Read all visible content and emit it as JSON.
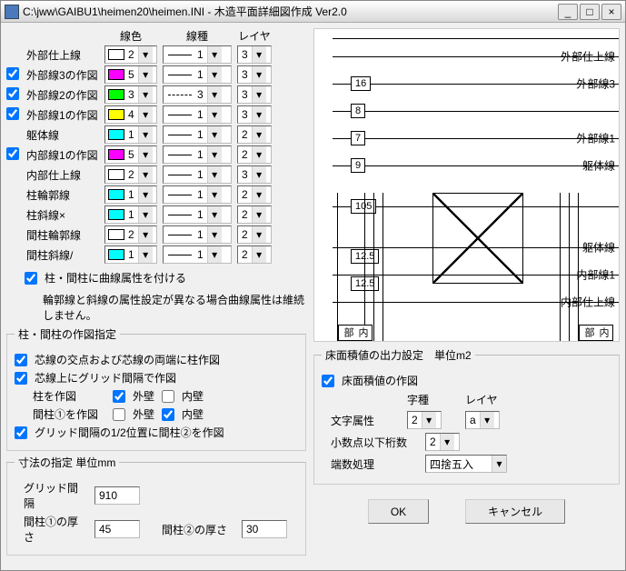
{
  "title": "C:\\jww\\GAIBU1\\heimen20\\heimen.INI - 木造平面詳細図作成 Ver2.0",
  "headers": {
    "color": "線色",
    "type": "線種",
    "layer": "レイヤ"
  },
  "lines": [
    {
      "cb": false,
      "showcb": false,
      "label": "外部仕上線",
      "swatch": "#ffffff",
      "cnum": "2",
      "pat": "solid",
      "tnum": "1",
      "layer": "3"
    },
    {
      "cb": true,
      "showcb": true,
      "label": "外部線3の作図",
      "swatch": "#ff00ff",
      "cnum": "5",
      "pat": "solid",
      "tnum": "1",
      "layer": "3"
    },
    {
      "cb": true,
      "showcb": true,
      "label": "外部線2の作図",
      "swatch": "#00ff00",
      "cnum": "3",
      "pat": "dash",
      "tnum": "3",
      "layer": "3"
    },
    {
      "cb": true,
      "showcb": true,
      "label": "外部線1の作図",
      "swatch": "#ffff00",
      "cnum": "4",
      "pat": "solid",
      "tnum": "1",
      "layer": "3"
    },
    {
      "cb": false,
      "showcb": false,
      "label": "躯体線",
      "swatch": "#00ffff",
      "cnum": "1",
      "pat": "solid",
      "tnum": "1",
      "layer": "2"
    },
    {
      "cb": true,
      "showcb": true,
      "label": "内部線1の作図",
      "swatch": "#ff00ff",
      "cnum": "5",
      "pat": "solid",
      "tnum": "1",
      "layer": "2"
    },
    {
      "cb": false,
      "showcb": false,
      "label": "内部仕上線",
      "swatch": "#ffffff",
      "cnum": "2",
      "pat": "solid",
      "tnum": "1",
      "layer": "3"
    },
    {
      "cb": false,
      "showcb": false,
      "label": "柱輪郭線",
      "swatch": "#00ffff",
      "cnum": "1",
      "pat": "solid",
      "tnum": "1",
      "layer": "2"
    },
    {
      "cb": false,
      "showcb": false,
      "label": "柱斜線×",
      "swatch": "#00ffff",
      "cnum": "1",
      "pat": "solid",
      "tnum": "1",
      "layer": "2"
    },
    {
      "cb": false,
      "showcb": false,
      "label": "間柱輪郭線",
      "swatch": "#ffffff",
      "cnum": "2",
      "pat": "solid",
      "tnum": "1",
      "layer": "2"
    },
    {
      "cb": false,
      "showcb": false,
      "label": "間柱斜線/",
      "swatch": "#00ffff",
      "cnum": "1",
      "pat": "solid",
      "tnum": "1",
      "layer": "2"
    }
  ],
  "curve_cb": {
    "label": "柱・間柱に曲線属性を付ける",
    "checked": true
  },
  "curve_note": "輪郭線と斜線の属性設定が異なる場合曲線属性は維続しません。",
  "pillar_group": {
    "legend": "柱・間柱の作図指定",
    "r1": {
      "checked": true,
      "label": "芯線の交点および芯線の両端に柱作図"
    },
    "r2": {
      "checked": true,
      "label": "芯線上にグリッド間隔で作図"
    },
    "r2a": {
      "label": "柱を作図",
      "outer_cb": true,
      "outer_lbl": "外壁",
      "inner_cb": false,
      "inner_lbl": "内壁"
    },
    "r2b": {
      "label": "間柱①を作図",
      "outer_cb": false,
      "outer_lbl": "外壁",
      "inner_cb": true,
      "inner_lbl": "内壁"
    },
    "r3": {
      "checked": true,
      "label": "グリッド間隔の1/2位置に間柱②を作図"
    }
  },
  "dim_group": {
    "legend": "寸法の指定 単位mm",
    "grid_lbl": "グリッド間隔",
    "grid_val": "910",
    "m1_lbl": "間柱①の厚さ",
    "m1_val": "45",
    "m2_lbl": "間柱②の厚さ",
    "m2_val": "30"
  },
  "preview": {
    "dims": [
      "16",
      "8",
      "7",
      "9",
      "105",
      "12.5",
      "12.5"
    ],
    "labels": [
      "外部仕上線",
      "外部線3",
      "",
      "外部線1",
      "躯体線",
      "",
      "躯体線",
      "内部線1",
      "内部仕上線"
    ],
    "vbox1": "内部",
    "vbox2": "内部"
  },
  "area_group": {
    "legend": "床面積値の出力設定　単位m2",
    "create_cb": true,
    "create_lbl": "床面積値の作図",
    "hdr_char": "字種",
    "hdr_layer": "レイヤ",
    "attr_lbl": "文字属性",
    "attr_char": "2",
    "attr_layer": "a",
    "dec_lbl": "小数点以下桁数",
    "dec_val": "2",
    "round_lbl": "端数処理",
    "round_val": "四捨五入"
  },
  "buttons": {
    "ok": "OK",
    "cancel": "キャンセル"
  }
}
